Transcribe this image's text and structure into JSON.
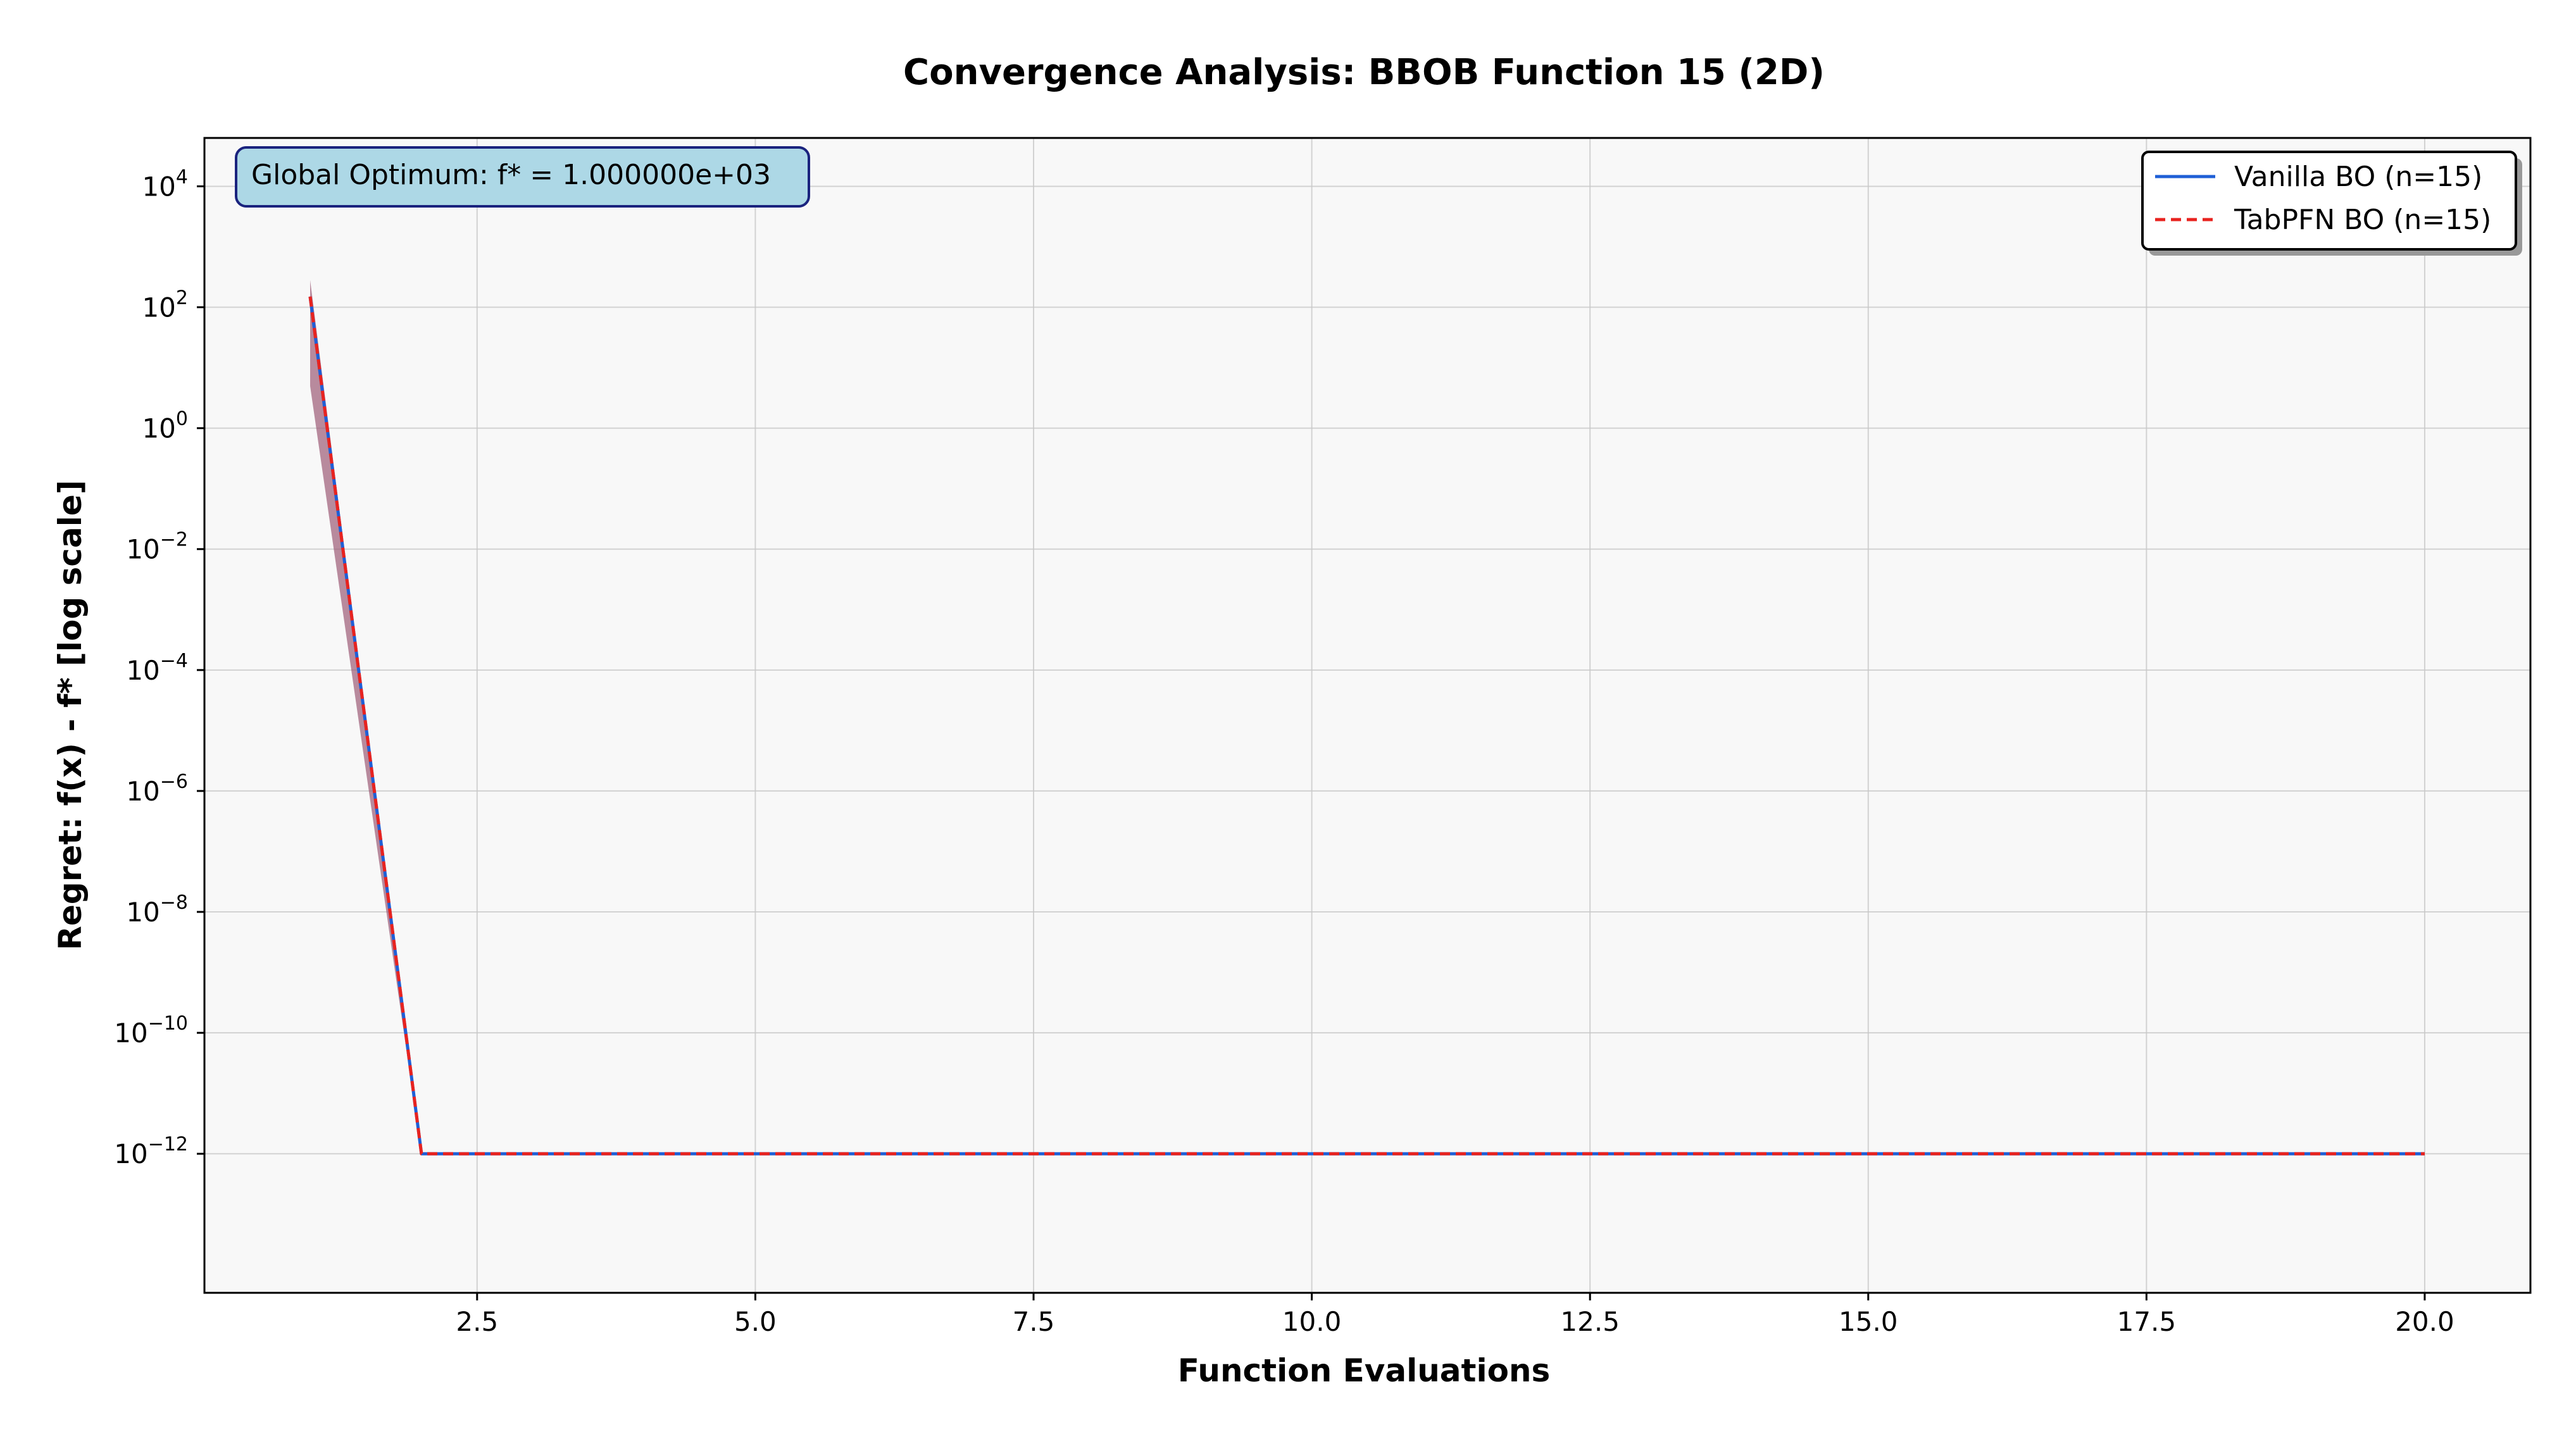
{
  "chart_data": {
    "type": "line",
    "title": "Convergence Analysis: BBOB Function 15 (2D)",
    "xlabel": "Function Evaluations",
    "ylabel": "Regret: f(x) - f* [log scale]",
    "xlim": [
      0.05,
      20.95
    ],
    "ylim_log10": [
      -14.3,
      4.8
    ],
    "yscale": "log",
    "grid": true,
    "legend_position": "top-right",
    "x_ticks": [
      2.5,
      5.0,
      7.5,
      10.0,
      12.5,
      15.0,
      17.5,
      20.0
    ],
    "x_tick_labels": [
      "2.5",
      "5.0",
      "7.5",
      "10.0",
      "12.5",
      "15.0",
      "17.5",
      "20.0"
    ],
    "y_tick_exponents": [
      4,
      2,
      0,
      -2,
      -4,
      -6,
      -8,
      -10,
      -12
    ],
    "y_tick_base": "10",
    "x": [
      1,
      2,
      3,
      4,
      5,
      6,
      7,
      8,
      9,
      10,
      11,
      12,
      13,
      14,
      15,
      16,
      17,
      18,
      19,
      20
    ],
    "series": [
      {
        "name": "Vanilla BO (n=15)",
        "color": "#1f5fd6",
        "style": "solid",
        "values": [
          150,
          1e-12,
          1e-12,
          1e-12,
          1e-12,
          1e-12,
          1e-12,
          1e-12,
          1e-12,
          1e-12,
          1e-12,
          1e-12,
          1e-12,
          1e-12,
          1e-12,
          1e-12,
          1e-12,
          1e-12,
          1e-12,
          1e-12
        ],
        "band_upper": [
          280,
          1e-12,
          1e-12,
          1e-12,
          1e-12,
          1e-12,
          1e-12,
          1e-12,
          1e-12,
          1e-12,
          1e-12,
          1e-12,
          1e-12,
          1e-12,
          1e-12,
          1e-12,
          1e-12,
          1e-12,
          1e-12,
          1e-12
        ],
        "band_lower": [
          5,
          1e-12,
          1e-12,
          1e-12,
          1e-12,
          1e-12,
          1e-12,
          1e-12,
          1e-12,
          1e-12,
          1e-12,
          1e-12,
          1e-12,
          1e-12,
          1e-12,
          1e-12,
          1e-12,
          1e-12,
          1e-12,
          1e-12
        ],
        "band_color": "#7a5a8a"
      },
      {
        "name": "TabPFN BO (n=15)",
        "color": "#e8231f",
        "style": "dashed",
        "values": [
          150,
          1e-12,
          1e-12,
          1e-12,
          1e-12,
          1e-12,
          1e-12,
          1e-12,
          1e-12,
          1e-12,
          1e-12,
          1e-12,
          1e-12,
          1e-12,
          1e-12,
          1e-12,
          1e-12,
          1e-12,
          1e-12,
          1e-12
        ],
        "band_upper": [
          280,
          1e-12,
          1e-12,
          1e-12,
          1e-12,
          1e-12,
          1e-12,
          1e-12,
          1e-12,
          1e-12,
          1e-12,
          1e-12,
          1e-12,
          1e-12,
          1e-12,
          1e-12,
          1e-12,
          1e-12,
          1e-12,
          1e-12
        ],
        "band_lower": [
          5,
          1e-12,
          1e-12,
          1e-12,
          1e-12,
          1e-12,
          1e-12,
          1e-12,
          1e-12,
          1e-12,
          1e-12,
          1e-12,
          1e-12,
          1e-12,
          1e-12,
          1e-12,
          1e-12,
          1e-12,
          1e-12,
          1e-12
        ],
        "band_color": "#b05a6a"
      }
    ],
    "annotation": {
      "text": "Global Optimum: f* = 1.000000e+03",
      "position": "top-left",
      "box_color": "#add8e6",
      "border_color": "#1a237e"
    },
    "colors": {
      "plot_background": "#f8f8f8",
      "grid": "#c8c8c8"
    }
  }
}
